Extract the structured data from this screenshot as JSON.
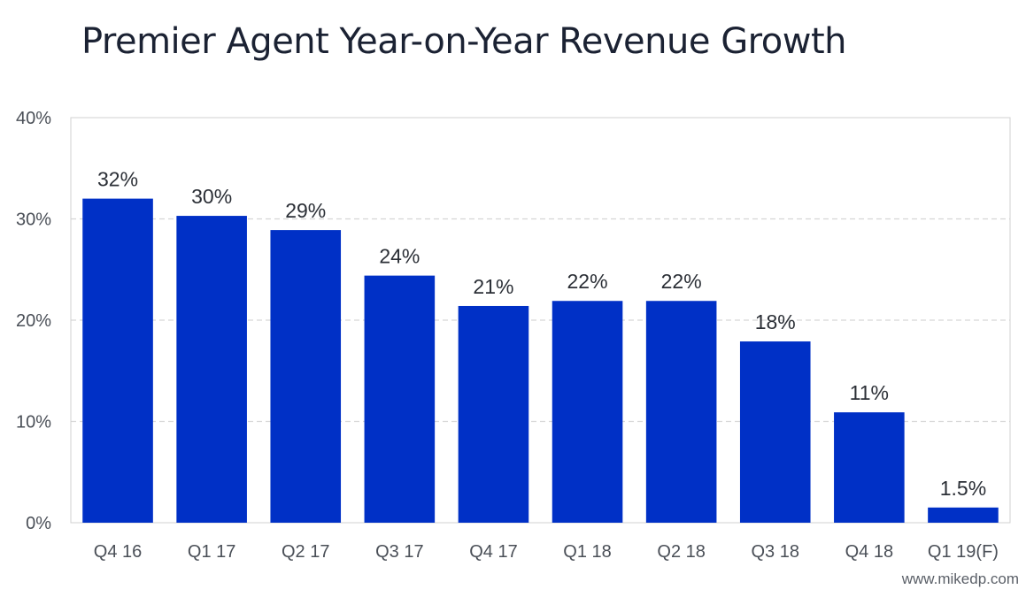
{
  "title": "Premier Agent Year-on-Year Revenue Growth",
  "watermark": "www.mikedp.com",
  "colors": {
    "bar": "#0030c6",
    "grid": "#d6d6d6",
    "plot_border": "#d0d0d0"
  },
  "chart_data": {
    "type": "bar",
    "title": "Premier Agent Year-on-Year Revenue Growth",
    "xlabel": "",
    "ylabel": "",
    "categories": [
      "Q4 16",
      "Q1 17",
      "Q2 17",
      "Q3 17",
      "Q4 17",
      "Q1 18",
      "Q2 18",
      "Q3 18",
      "Q4 18",
      "Q1 19(F)"
    ],
    "values": [
      32,
      30.3,
      28.9,
      24.4,
      21.4,
      21.9,
      21.9,
      17.9,
      10.9,
      1.5
    ],
    "data_labels": [
      "32%",
      "30%",
      "29%",
      "24%",
      "21%",
      "22%",
      "22%",
      "18%",
      "11%",
      "1.5%"
    ],
    "ylim": [
      0,
      40
    ],
    "yticks": [
      0,
      10,
      20,
      30,
      40
    ],
    "ytick_labels": [
      "0%",
      "10%",
      "20%",
      "30%",
      "40%"
    ],
    "grid": true,
    "grid_style": "dashed",
    "legend": "none"
  }
}
